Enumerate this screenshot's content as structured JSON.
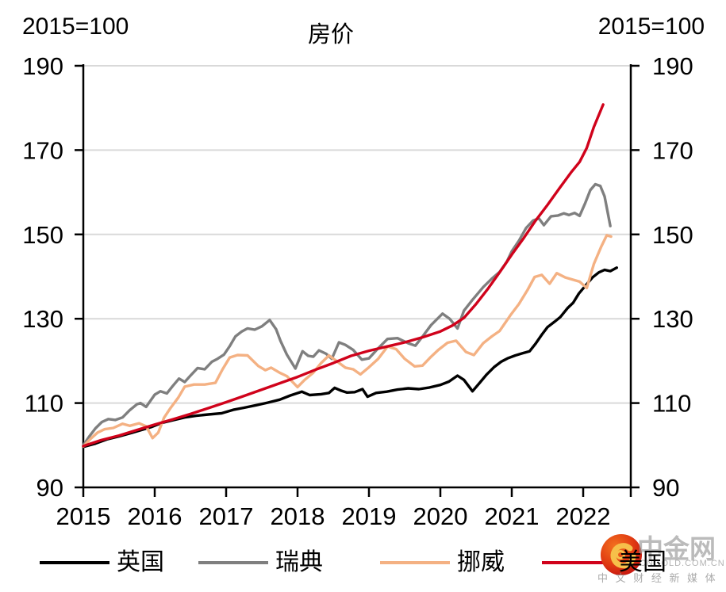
{
  "header": {
    "axis_note_left": "2015=100",
    "axis_note_right": "2015=100",
    "title": "房价"
  },
  "watermark": {
    "brand": "中金网",
    "domain": "CNGOLD.COM.CN",
    "tagline": "中 文 财 经 新 媒 体"
  },
  "chart_data": {
    "type": "line",
    "title": "房价",
    "index_note": "2015=100",
    "xlabel": "",
    "ylabel": "",
    "xlim": [
      2015,
      2022.67
    ],
    "ylim": [
      90,
      190
    ],
    "y_ticks": [
      90,
      110,
      130,
      150,
      170,
      190
    ],
    "x_ticks": [
      2015,
      2016,
      2017,
      2018,
      2019,
      2020,
      2021,
      2022
    ],
    "gridlines": [
      110,
      130,
      150,
      170,
      190
    ],
    "grid_color": "#d9d9d9",
    "axis_color": "#000000",
    "legend_position": "bottom",
    "series": [
      {
        "key": "uk",
        "name": "英国",
        "color": "#000000",
        "points": [
          [
            2015.0,
            99.6
          ],
          [
            2015.17,
            100.4
          ],
          [
            2015.33,
            101.4
          ],
          [
            2015.5,
            102.1
          ],
          [
            2015.67,
            102.9
          ],
          [
            2015.83,
            103.7
          ],
          [
            2015.95,
            104.3
          ],
          [
            2016.1,
            105.3
          ],
          [
            2016.25,
            105.9
          ],
          [
            2016.42,
            106.6
          ],
          [
            2016.58,
            107.0
          ],
          [
            2016.75,
            107.3
          ],
          [
            2016.94,
            107.6
          ],
          [
            2017.1,
            108.4
          ],
          [
            2017.25,
            108.9
          ],
          [
            2017.42,
            109.5
          ],
          [
            2017.58,
            110.1
          ],
          [
            2017.75,
            110.8
          ],
          [
            2017.9,
            111.8
          ],
          [
            2018.06,
            112.7
          ],
          [
            2018.17,
            111.9
          ],
          [
            2018.33,
            112.1
          ],
          [
            2018.44,
            112.4
          ],
          [
            2018.52,
            113.6
          ],
          [
            2018.6,
            113.0
          ],
          [
            2018.69,
            112.5
          ],
          [
            2018.8,
            112.6
          ],
          [
            2018.91,
            113.3
          ],
          [
            2018.98,
            111.5
          ],
          [
            2019.1,
            112.4
          ],
          [
            2019.25,
            112.7
          ],
          [
            2019.4,
            113.2
          ],
          [
            2019.55,
            113.5
          ],
          [
            2019.7,
            113.3
          ],
          [
            2019.85,
            113.7
          ],
          [
            2020.0,
            114.3
          ],
          [
            2020.12,
            115.1
          ],
          [
            2020.24,
            116.5
          ],
          [
            2020.33,
            115.5
          ],
          [
            2020.45,
            112.8
          ],
          [
            2020.55,
            114.8
          ],
          [
            2020.65,
            116.8
          ],
          [
            2020.75,
            118.5
          ],
          [
            2020.85,
            119.8
          ],
          [
            2020.94,
            120.6
          ],
          [
            2021.05,
            121.3
          ],
          [
            2021.15,
            121.8
          ],
          [
            2021.25,
            122.3
          ],
          [
            2021.33,
            124.0
          ],
          [
            2021.42,
            126.2
          ],
          [
            2021.5,
            128.0
          ],
          [
            2021.6,
            129.3
          ],
          [
            2021.68,
            130.4
          ],
          [
            2021.78,
            132.5
          ],
          [
            2021.86,
            133.8
          ],
          [
            2021.94,
            136.0
          ],
          [
            2022.03,
            137.8
          ],
          [
            2022.13,
            139.8
          ],
          [
            2022.22,
            141.0
          ],
          [
            2022.3,
            141.6
          ],
          [
            2022.38,
            141.3
          ],
          [
            2022.47,
            142.1
          ]
        ]
      },
      {
        "key": "sweden",
        "name": "瑞典",
        "color": "#7f7f7f",
        "points": [
          [
            2015.0,
            100.0
          ],
          [
            2015.08,
            102.0
          ],
          [
            2015.17,
            104.0
          ],
          [
            2015.26,
            105.5
          ],
          [
            2015.35,
            106.2
          ],
          [
            2015.45,
            106.0
          ],
          [
            2015.55,
            106.6
          ],
          [
            2015.65,
            108.3
          ],
          [
            2015.75,
            109.7
          ],
          [
            2015.8,
            110.0
          ],
          [
            2015.88,
            109.1
          ],
          [
            2016.0,
            112.0
          ],
          [
            2016.08,
            112.8
          ],
          [
            2016.17,
            112.3
          ],
          [
            2016.25,
            114.0
          ],
          [
            2016.34,
            115.8
          ],
          [
            2016.42,
            115.0
          ],
          [
            2016.5,
            116.5
          ],
          [
            2016.6,
            118.3
          ],
          [
            2016.7,
            118.0
          ],
          [
            2016.8,
            119.8
          ],
          [
            2016.88,
            120.5
          ],
          [
            2016.97,
            121.5
          ],
          [
            2017.05,
            123.5
          ],
          [
            2017.13,
            125.8
          ],
          [
            2017.22,
            127.0
          ],
          [
            2017.3,
            127.7
          ],
          [
            2017.4,
            127.4
          ],
          [
            2017.5,
            128.2
          ],
          [
            2017.61,
            129.7
          ],
          [
            2017.7,
            127.5
          ],
          [
            2017.76,
            124.8
          ],
          [
            2017.85,
            121.5
          ],
          [
            2017.97,
            118.2
          ],
          [
            2018.07,
            122.3
          ],
          [
            2018.15,
            121.2
          ],
          [
            2018.22,
            121.0
          ],
          [
            2018.3,
            122.5
          ],
          [
            2018.4,
            121.7
          ],
          [
            2018.48,
            120.5
          ],
          [
            2018.58,
            124.4
          ],
          [
            2018.67,
            123.8
          ],
          [
            2018.78,
            122.6
          ],
          [
            2018.9,
            120.3
          ],
          [
            2019.0,
            120.6
          ],
          [
            2019.13,
            123.0
          ],
          [
            2019.26,
            125.2
          ],
          [
            2019.4,
            125.4
          ],
          [
            2019.55,
            124.2
          ],
          [
            2019.65,
            123.6
          ],
          [
            2019.76,
            126.0
          ],
          [
            2019.87,
            128.5
          ],
          [
            2020.03,
            131.2
          ],
          [
            2020.13,
            130.0
          ],
          [
            2020.24,
            127.7
          ],
          [
            2020.33,
            131.9
          ],
          [
            2020.45,
            134.5
          ],
          [
            2020.6,
            137.5
          ],
          [
            2020.72,
            139.5
          ],
          [
            2020.83,
            141.1
          ],
          [
            2020.93,
            143.5
          ],
          [
            2021.0,
            146.0
          ],
          [
            2021.1,
            148.5
          ],
          [
            2021.2,
            151.5
          ],
          [
            2021.3,
            153.3
          ],
          [
            2021.38,
            153.8
          ],
          [
            2021.45,
            152.2
          ],
          [
            2021.55,
            154.3
          ],
          [
            2021.65,
            154.5
          ],
          [
            2021.73,
            155.0
          ],
          [
            2021.8,
            154.6
          ],
          [
            2021.88,
            155.1
          ],
          [
            2021.95,
            154.4
          ],
          [
            2022.03,
            157.5
          ],
          [
            2022.1,
            160.5
          ],
          [
            2022.17,
            161.9
          ],
          [
            2022.24,
            161.5
          ],
          [
            2022.3,
            159.0
          ],
          [
            2022.34,
            155.5
          ],
          [
            2022.38,
            152.0
          ]
        ]
      },
      {
        "key": "norway",
        "name": "挪威",
        "color": "#f4b183",
        "points": [
          [
            2015.0,
            99.7
          ],
          [
            2015.1,
            101.5
          ],
          [
            2015.2,
            103.0
          ],
          [
            2015.3,
            103.8
          ],
          [
            2015.42,
            104.1
          ],
          [
            2015.55,
            105.1
          ],
          [
            2015.65,
            104.6
          ],
          [
            2015.78,
            105.2
          ],
          [
            2015.88,
            104.5
          ],
          [
            2015.97,
            101.7
          ],
          [
            2016.05,
            103.0
          ],
          [
            2016.13,
            106.5
          ],
          [
            2016.22,
            108.8
          ],
          [
            2016.33,
            111.3
          ],
          [
            2016.42,
            113.9
          ],
          [
            2016.55,
            114.4
          ],
          [
            2016.7,
            114.4
          ],
          [
            2016.85,
            114.8
          ],
          [
            2016.95,
            118.0
          ],
          [
            2017.05,
            120.8
          ],
          [
            2017.16,
            121.4
          ],
          [
            2017.3,
            121.3
          ],
          [
            2017.45,
            118.8
          ],
          [
            2017.55,
            117.8
          ],
          [
            2017.63,
            118.4
          ],
          [
            2017.75,
            117.2
          ],
          [
            2017.85,
            116.4
          ],
          [
            2018.0,
            113.8
          ],
          [
            2018.1,
            115.5
          ],
          [
            2018.22,
            117.2
          ],
          [
            2018.33,
            119.5
          ],
          [
            2018.44,
            121.3
          ],
          [
            2018.56,
            119.8
          ],
          [
            2018.67,
            118.4
          ],
          [
            2018.78,
            118.0
          ],
          [
            2018.88,
            116.8
          ],
          [
            2019.0,
            118.5
          ],
          [
            2019.13,
            120.5
          ],
          [
            2019.26,
            123.4
          ],
          [
            2019.38,
            122.8
          ],
          [
            2019.5,
            120.5
          ],
          [
            2019.64,
            118.7
          ],
          [
            2019.75,
            118.9
          ],
          [
            2019.87,
            121.0
          ],
          [
            2019.97,
            122.6
          ],
          [
            2020.1,
            124.3
          ],
          [
            2020.22,
            124.8
          ],
          [
            2020.36,
            122.1
          ],
          [
            2020.47,
            121.4
          ],
          [
            2020.6,
            124.2
          ],
          [
            2020.72,
            125.8
          ],
          [
            2020.83,
            127.1
          ],
          [
            2020.98,
            130.8
          ],
          [
            2021.1,
            133.5
          ],
          [
            2021.22,
            136.8
          ],
          [
            2021.32,
            139.9
          ],
          [
            2021.42,
            140.4
          ],
          [
            2021.53,
            138.3
          ],
          [
            2021.63,
            140.8
          ],
          [
            2021.75,
            139.8
          ],
          [
            2021.85,
            139.3
          ],
          [
            2021.95,
            138.8
          ],
          [
            2022.05,
            137.3
          ],
          [
            2022.15,
            143.0
          ],
          [
            2022.25,
            147.0
          ],
          [
            2022.33,
            149.8
          ],
          [
            2022.39,
            149.5
          ]
        ]
      },
      {
        "key": "us",
        "name": "美国",
        "color": "#d0021b",
        "points": [
          [
            2015.0,
            99.8
          ],
          [
            2015.25,
            101.2
          ],
          [
            2015.5,
            102.3
          ],
          [
            2015.75,
            103.6
          ],
          [
            2016.0,
            104.9
          ],
          [
            2016.25,
            106.1
          ],
          [
            2016.5,
            107.4
          ],
          [
            2016.75,
            108.8
          ],
          [
            2017.0,
            110.2
          ],
          [
            2017.25,
            111.7
          ],
          [
            2017.5,
            113.2
          ],
          [
            2017.75,
            114.7
          ],
          [
            2018.0,
            116.2
          ],
          [
            2018.25,
            117.9
          ],
          [
            2018.5,
            119.5
          ],
          [
            2018.75,
            121.2
          ],
          [
            2019.0,
            122.4
          ],
          [
            2019.25,
            123.4
          ],
          [
            2019.5,
            124.4
          ],
          [
            2019.75,
            125.6
          ],
          [
            2020.0,
            127.0
          ],
          [
            2020.17,
            128.4
          ],
          [
            2020.33,
            130.2
          ],
          [
            2020.5,
            133.5
          ],
          [
            2020.67,
            137.2
          ],
          [
            2020.83,
            141.0
          ],
          [
            2021.0,
            145.2
          ],
          [
            2021.17,
            149.2
          ],
          [
            2021.33,
            153.2
          ],
          [
            2021.5,
            157.0
          ],
          [
            2021.67,
            161.0
          ],
          [
            2021.83,
            164.7
          ],
          [
            2021.95,
            167.2
          ],
          [
            2022.05,
            170.5
          ],
          [
            2022.15,
            175.5
          ],
          [
            2022.28,
            180.8
          ]
        ]
      }
    ]
  }
}
